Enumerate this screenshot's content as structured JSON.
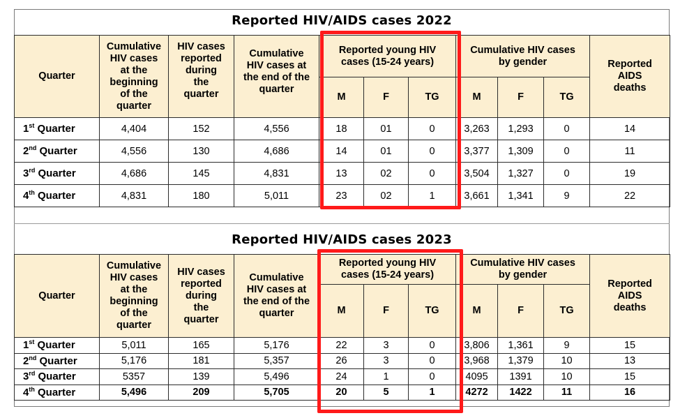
{
  "colors": {
    "header_bg": "#fcefd1",
    "highlight": "#ff1a1a"
  },
  "headers": {
    "quarter": "Quarter",
    "cum_begin": [
      "Cumulative",
      "HIV cases",
      "at the",
      "beginning",
      "of the",
      "quarter"
    ],
    "reported": [
      "HIV cases",
      "reported",
      "during",
      "the",
      "quarter"
    ],
    "cum_end": [
      "Cumulative",
      "HIV cases at",
      "the end of the",
      "quarter"
    ],
    "young": [
      "Reported young HIV",
      "cases (15-24 years)"
    ],
    "gender": [
      "Cumulative HIV cases",
      "by gender"
    ],
    "deaths": [
      "Reported",
      "AIDS",
      "deaths"
    ],
    "m": "M",
    "f": "F",
    "tg": "TG"
  },
  "tables": [
    {
      "title": "Reported HIV/AIDS cases 2022",
      "rows": [
        {
          "q_num": "1",
          "q_sup": "st",
          "q_word": "Quarter",
          "cells": [
            "4,404",
            "152",
            "4,556",
            "18",
            "01",
            "0",
            "3,263",
            "1,293",
            "0",
            "14"
          ]
        },
        {
          "q_num": "2",
          "q_sup": "nd",
          "q_word": "Quarter",
          "cells": [
            "4,556",
            "130",
            "4,686",
            "14",
            "01",
            "0",
            "3,377",
            "1,309",
            "0",
            "11"
          ]
        },
        {
          "q_num": "3",
          "q_sup": "rd",
          "q_word": "Quarter",
          "cells": [
            "4,686",
            "145",
            "4,831",
            "13",
            "02",
            "0",
            "3,504",
            "1,327",
            "0",
            "19"
          ]
        },
        {
          "q_num": "4",
          "q_sup": "th",
          "q_word": "Quarter",
          "cells": [
            "4,831",
            "180",
            "5,011",
            "23",
            "02",
            "1",
            "3,661",
            "1,341",
            "9",
            "22"
          ]
        }
      ]
    },
    {
      "title": "Reported HIV/AIDS cases 2023",
      "rows": [
        {
          "q_num": "1",
          "q_sup": "st",
          "q_word": "Quarter",
          "cells": [
            "5,011",
            "165",
            "5,176",
            "22",
            "3",
            "0",
            "3,806",
            "1,361",
            "9",
            "15"
          ]
        },
        {
          "q_num": "2",
          "q_sup": "nd",
          "q_word": "Quarter",
          "cells": [
            "5,176",
            "181",
            "5,357",
            "26",
            "3",
            "0",
            "3,968",
            "1,379",
            "10",
            "13"
          ]
        },
        {
          "q_num": "3",
          "q_sup": "rd",
          "q_word": "Quarter",
          "cells": [
            "5357",
            "139",
            "5,496",
            "24",
            "1",
            "0",
            "4095",
            "1391",
            "10",
            "15"
          ]
        },
        {
          "q_num": "4",
          "q_sup": "th",
          "q_word": " Quarter",
          "cells": [
            "5,496",
            "209",
            "5,705",
            "20",
            "5",
            "1",
            "4272",
            "1422",
            "11",
            "16"
          ]
        }
      ]
    }
  ]
}
